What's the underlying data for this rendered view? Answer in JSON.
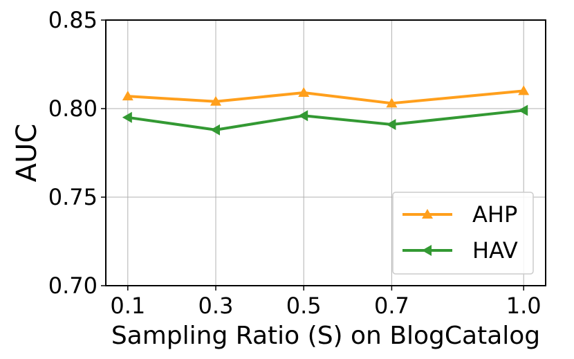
{
  "chart_data": {
    "type": "line",
    "title": "",
    "xlabel": "Sampling Ratio (S) on BlogCatalog",
    "ylabel": "AUC",
    "categories": [
      "0.1",
      "0.3",
      "0.5",
      "0.7",
      "1.0"
    ],
    "x": [
      0.1,
      0.3,
      0.5,
      0.7,
      1.0
    ],
    "yticks": [
      "0.70",
      "0.75",
      "0.80",
      "0.85"
    ],
    "ylim": [
      0.7,
      0.85
    ],
    "grid": true,
    "legend_position": "bottom-right",
    "series": [
      {
        "name": "AHP",
        "values": [
          0.807,
          0.804,
          0.809,
          0.803,
          0.81
        ],
        "color": "#ff9f1c",
        "marker": "triangle-up"
      },
      {
        "name": "HAV",
        "values": [
          0.795,
          0.788,
          0.796,
          0.791,
          0.799
        ],
        "color": "#339933",
        "marker": "triangle-left"
      }
    ]
  }
}
